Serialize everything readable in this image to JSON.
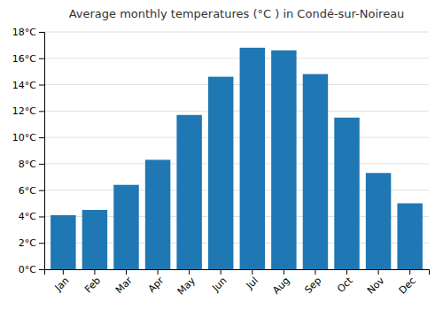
{
  "chart_data": {
    "type": "bar",
    "title": "Average monthly temperatures (°C ) in Condé-sur-Noireau",
    "categories": [
      "Jan",
      "Feb",
      "Mar",
      "Apr",
      "May",
      "Jun",
      "Jul",
      "Aug",
      "Sep",
      "Oct",
      "Nov",
      "Dec"
    ],
    "values": [
      4.1,
      4.5,
      6.4,
      8.3,
      11.7,
      14.6,
      16.8,
      16.6,
      14.8,
      11.5,
      7.3,
      5.0
    ],
    "ylim": [
      0,
      18
    ],
    "yticks": [
      {
        "value": 0,
        "label": "0°C"
      },
      {
        "value": 2,
        "label": "2°C"
      },
      {
        "value": 4,
        "label": "4°C"
      },
      {
        "value": 6,
        "label": "6°C"
      },
      {
        "value": 8,
        "label": "8°C"
      },
      {
        "value": 10,
        "label": "10°C"
      },
      {
        "value": 12,
        "label": "12°C"
      },
      {
        "value": 14,
        "label": "14°C"
      },
      {
        "value": 16,
        "label": "16°C"
      },
      {
        "value": 18,
        "label": "18°C"
      }
    ],
    "grid": true
  }
}
